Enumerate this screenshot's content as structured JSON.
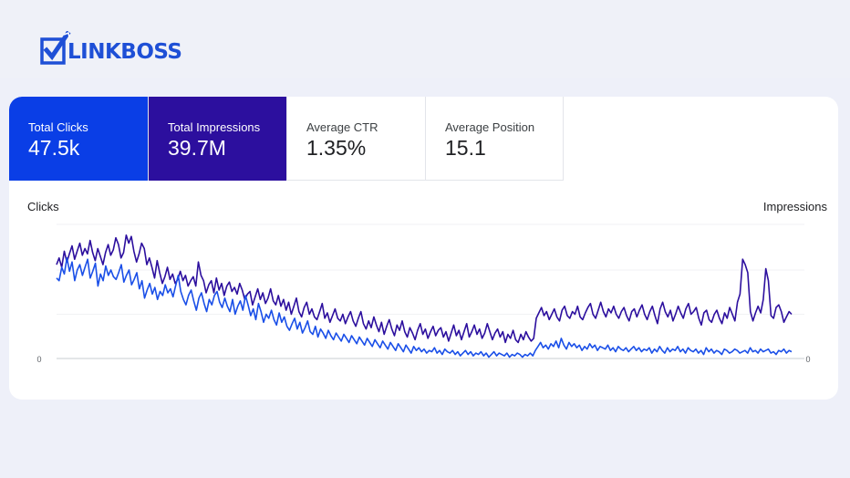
{
  "brand": {
    "name": "LINKBOSS",
    "logo_icon": "checkbox-check-icon",
    "color": "#1e4fd6"
  },
  "metrics": [
    {
      "label": "Total Clicks",
      "value": "47.5k",
      "active": true,
      "color": "#0a3ee6"
    },
    {
      "label": "Total Impressions",
      "value": "39.7M",
      "active": true,
      "color": "#2c0f9e"
    },
    {
      "label": "Average CTR",
      "value": "1.35%",
      "active": false
    },
    {
      "label": "Average Position",
      "value": "15.1",
      "active": false
    }
  ],
  "chart_data": {
    "type": "line",
    "xlabel": "",
    "ylabel_left": "Clicks",
    "ylabel_right": "Impressions",
    "left_axis_ticks": [
      "0"
    ],
    "right_axis_ticks": [
      "0"
    ],
    "grid": true,
    "series": [
      {
        "color": "#2c0f9e",
        "axis": "right",
        "values": [
          70,
          75,
          68,
          80,
          72,
          78,
          84,
          74,
          80,
          86,
          77,
          82,
          78,
          88,
          79,
          73,
          82,
          76,
          70,
          79,
          85,
          77,
          81,
          90,
          85,
          75,
          79,
          92,
          86,
          91,
          80,
          72,
          78,
          86,
          82,
          70,
          75,
          68,
          60,
          73,
          64,
          56,
          61,
          68,
          59,
          63,
          56,
          59,
          65,
          58,
          62,
          54,
          58,
          61,
          54,
          72,
          62,
          58,
          49,
          55,
          58,
          49,
          60,
          51,
          56,
          47,
          54,
          57,
          50,
          53,
          48,
          56,
          51,
          44,
          48,
          50,
          40,
          46,
          52,
          44,
          49,
          41,
          45,
          52,
          43,
          40,
          47,
          39,
          44,
          36,
          42,
          33,
          39,
          45,
          35,
          31,
          38,
          42,
          33,
          37,
          31,
          29,
          35,
          41,
          30,
          34,
          27,
          32,
          37,
          30,
          28,
          33,
          26,
          31,
          35,
          28,
          24,
          30,
          35,
          26,
          22,
          28,
          23,
          31,
          25,
          20,
          27,
          18,
          24,
          29,
          22,
          17,
          25,
          21,
          28,
          20,
          16,
          23,
          19,
          14,
          21,
          26,
          18,
          22,
          15,
          20,
          24,
          17,
          21,
          23,
          16,
          20,
          13,
          19,
          25,
          17,
          21,
          14,
          20,
          26,
          16,
          20,
          25,
          18,
          22,
          15,
          19,
          26,
          20,
          14,
          19,
          22,
          16,
          20,
          12,
          18,
          15,
          21,
          14,
          12,
          18,
          14,
          20,
          16,
          13,
          15,
          30,
          34,
          38,
          32,
          35,
          29,
          33,
          37,
          31,
          28,
          36,
          39,
          32,
          30,
          35,
          33,
          39,
          31,
          29,
          34,
          38,
          41,
          33,
          30,
          36,
          42,
          35,
          31,
          37,
          34,
          39,
          33,
          30,
          35,
          38,
          32,
          28,
          35,
          37,
          31,
          36,
          40,
          33,
          29,
          35,
          39,
          32,
          26,
          37,
          42,
          35,
          31,
          36,
          28,
          33,
          39,
          34,
          30,
          37,
          41,
          33,
          35,
          38,
          30,
          25,
          34,
          36,
          29,
          27,
          33,
          36,
          30,
          26,
          34,
          30,
          38,
          33,
          28,
          42,
          48,
          74,
          70,
          64,
          35,
          28,
          34,
          39,
          34,
          44,
          67,
          58,
          32,
          30,
          38,
          40,
          35,
          27,
          31,
          35,
          33
        ]
      },
      {
        "color": "#1a4fe8",
        "axis": "left",
        "values": [
          60,
          58,
          68,
          63,
          75,
          65,
          72,
          58,
          66,
          70,
          62,
          68,
          74,
          60,
          65,
          71,
          54,
          63,
          58,
          69,
          62,
          66,
          61,
          59,
          64,
          70,
          57,
          62,
          66,
          55,
          59,
          64,
          52,
          58,
          45,
          51,
          56,
          48,
          53,
          44,
          50,
          47,
          55,
          49,
          52,
          46,
          54,
          62,
          50,
          44,
          40,
          47,
          51,
          43,
          36,
          45,
          49,
          41,
          35,
          44,
          40,
          47,
          50,
          42,
          38,
          45,
          39,
          35,
          44,
          33,
          39,
          43,
          36,
          47,
          40,
          32,
          37,
          29,
          41,
          35,
          27,
          33,
          30,
          36,
          29,
          25,
          34,
          27,
          31,
          24,
          21,
          26,
          30,
          22,
          27,
          19,
          23,
          28,
          20,
          18,
          24,
          16,
          22,
          19,
          15,
          21,
          17,
          14,
          19,
          16,
          13,
          18,
          15,
          12,
          17,
          14,
          11,
          16,
          13,
          10,
          15,
          12,
          9,
          14,
          11,
          8,
          13,
          10,
          7,
          12,
          9,
          6,
          11,
          8,
          5,
          10,
          7,
          4,
          9,
          6,
          8,
          5,
          7,
          4,
          6,
          5,
          8,
          4,
          6,
          3,
          7,
          5,
          4,
          6,
          3,
          5,
          2,
          4,
          6,
          3,
          5,
          2,
          4,
          3,
          5,
          2,
          4,
          1,
          3,
          5,
          2,
          4,
          3,
          2,
          4,
          1,
          3,
          2,
          4,
          3,
          1,
          3,
          2,
          4,
          2,
          6,
          9,
          12,
          8,
          10,
          7,
          11,
          9,
          13,
          8,
          15,
          10,
          7,
          12,
          9,
          11,
          8,
          10,
          6,
          9,
          7,
          11,
          8,
          10,
          6,
          9,
          8,
          7,
          10,
          6,
          8,
          5,
          9,
          7,
          6,
          8,
          5,
          7,
          9,
          6,
          8,
          5,
          7,
          6,
          8,
          4,
          7,
          5,
          9,
          6,
          4,
          8,
          5,
          7,
          6,
          9,
          5,
          7,
          4,
          8,
          6,
          5,
          7,
          4,
          6,
          3,
          8,
          5,
          7,
          4,
          6,
          5,
          3,
          7,
          6,
          4,
          5,
          7,
          6,
          4,
          5,
          6,
          4,
          8,
          5,
          6,
          4,
          7,
          5,
          6,
          7,
          4,
          5,
          3,
          6,
          5,
          7,
          4,
          6,
          5
        ]
      }
    ]
  }
}
